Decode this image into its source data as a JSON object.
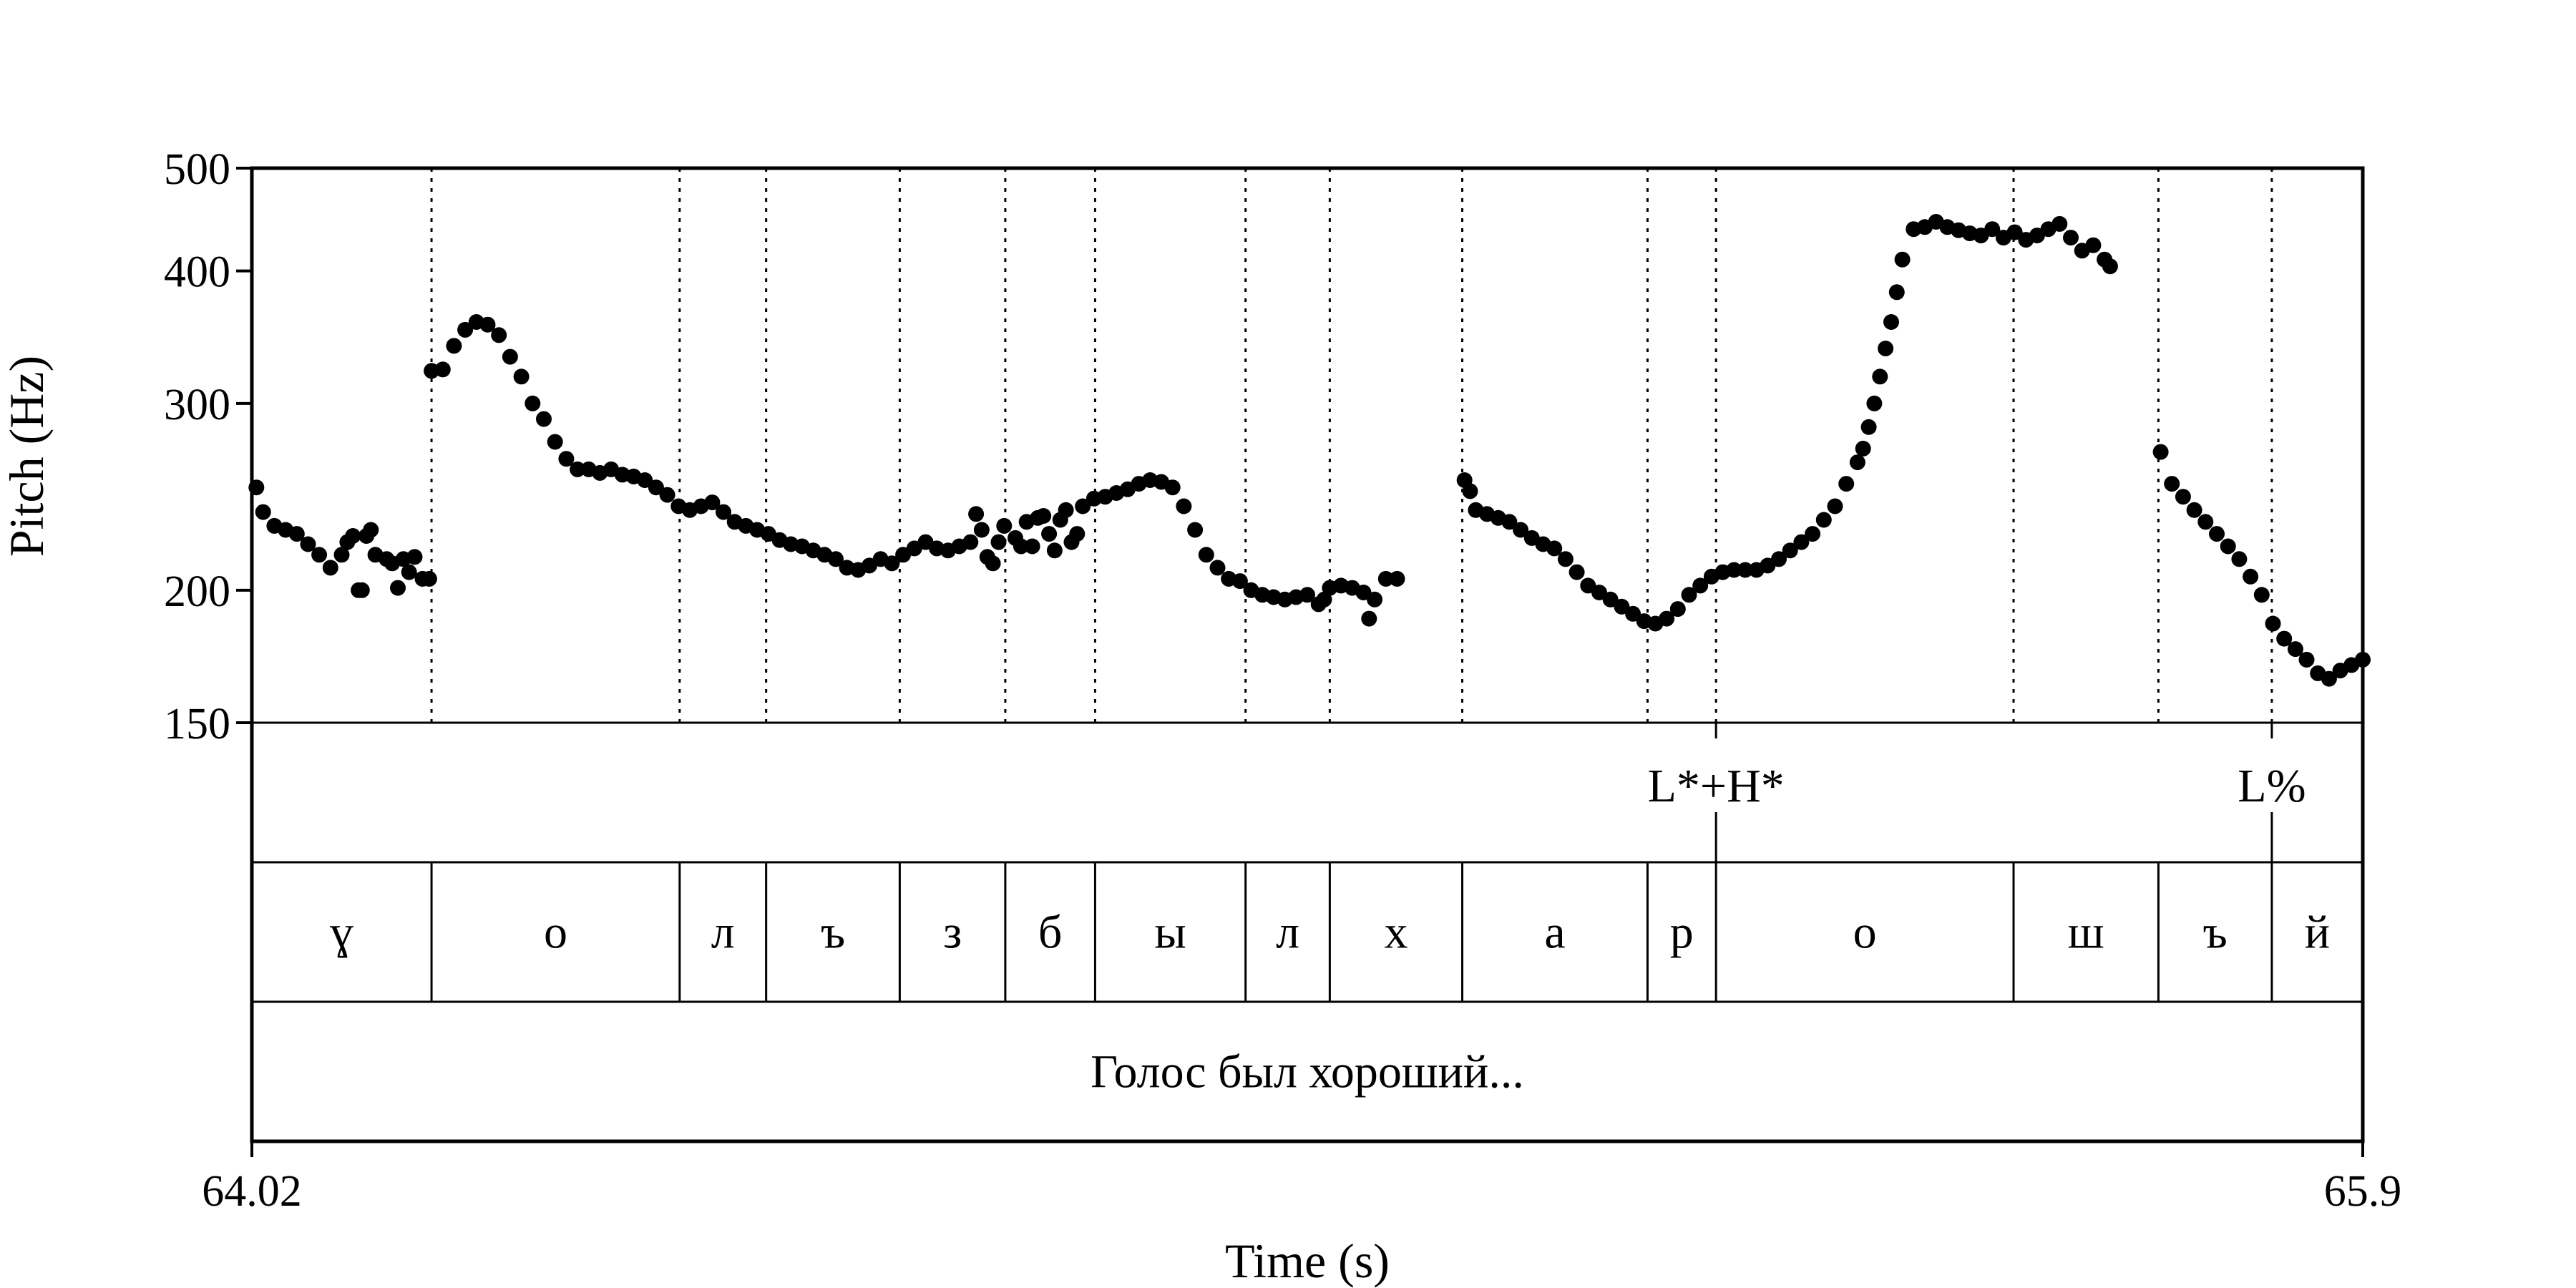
{
  "chart_data": {
    "type": "scatter",
    "title": "",
    "xlabel": "Time (s)",
    "ylabel": "Pitch (Hz)",
    "x_range": [
      64.02,
      65.9
    ],
    "y_range": [
      150,
      500
    ],
    "y_scale": "log",
    "x_tick_labels": [
      "64.02",
      "65.9"
    ],
    "y_tick_labels": [
      "150",
      "200",
      "300",
      "400",
      "500"
    ],
    "y_ticks": [
      150,
      200,
      300,
      400,
      500
    ],
    "grid": false,
    "segment_boundaries": [
      64.18,
      64.401,
      64.478,
      64.597,
      64.691,
      64.771,
      64.905,
      64.98,
      65.098,
      65.263,
      65.324,
      65.589,
      65.718,
      65.819
    ],
    "phoneme_tier": [
      {
        "label": "ɣ",
        "start": 64.02,
        "end": 64.18
      },
      {
        "label": "о",
        "start": 64.18,
        "end": 64.401
      },
      {
        "label": "л",
        "start": 64.401,
        "end": 64.478
      },
      {
        "label": "ъ",
        "start": 64.478,
        "end": 64.597
      },
      {
        "label": "з",
        "start": 64.597,
        "end": 64.691
      },
      {
        "label": "б",
        "start": 64.691,
        "end": 64.771
      },
      {
        "label": "ы",
        "start": 64.771,
        "end": 64.905
      },
      {
        "label": "л",
        "start": 64.905,
        "end": 64.98
      },
      {
        "label": "х",
        "start": 64.98,
        "end": 65.098
      },
      {
        "label": "а",
        "start": 65.098,
        "end": 65.263
      },
      {
        "label": "р",
        "start": 65.263,
        "end": 65.324
      },
      {
        "label": "о",
        "start": 65.324,
        "end": 65.589
      },
      {
        "label": "ш",
        "start": 65.589,
        "end": 65.718
      },
      {
        "label": "ъ",
        "start": 65.718,
        "end": 65.819
      },
      {
        "label": "й",
        "start": 65.819,
        "end": 65.9
      }
    ],
    "tone_tier": [
      {
        "label": "L*+H*",
        "time": 65.324
      },
      {
        "label": "L%",
        "time": 65.819
      }
    ],
    "sentence_tier": {
      "label": "Голос был хороший...",
      "start": 64.02,
      "end": 65.9
    },
    "series": [
      {
        "points": [
          [
            64.024,
            250
          ],
          [
            64.03,
            237
          ],
          [
            64.04,
            230
          ],
          [
            64.05,
            228
          ],
          [
            64.06,
            226
          ],
          [
            64.07,
            221
          ],
          [
            64.08,
            216
          ],
          [
            64.09,
            210
          ],
          [
            64.1,
            216
          ],
          [
            64.105,
            222
          ],
          [
            64.11,
            225
          ],
          [
            64.115,
            200
          ],
          [
            64.118,
            200
          ],
          [
            64.122,
            225
          ],
          [
            64.126,
            228
          ],
          [
            64.13,
            216
          ],
          [
            64.14,
            214
          ],
          [
            64.145,
            212
          ],
          [
            64.15,
            201
          ],
          [
            64.155,
            214
          ],
          [
            64.16,
            208
          ],
          [
            64.165,
            215
          ],
          [
            64.172,
            205
          ],
          [
            64.178,
            205
          ],
          [
            64.18,
            322
          ],
          [
            64.19,
            323
          ],
          [
            64.2,
            340
          ],
          [
            64.21,
            352
          ],
          [
            64.22,
            358
          ],
          [
            64.23,
            356
          ],
          [
            64.24,
            348
          ],
          [
            64.25,
            332
          ],
          [
            64.26,
            318
          ],
          [
            64.27,
            300
          ],
          [
            64.28,
            290
          ],
          [
            64.29,
            276
          ],
          [
            64.3,
            266
          ],
          [
            64.31,
            260
          ],
          [
            64.32,
            260
          ],
          [
            64.33,
            258
          ],
          [
            64.34,
            260
          ],
          [
            64.35,
            257
          ],
          [
            64.36,
            256
          ],
          [
            64.37,
            254
          ],
          [
            64.38,
            250
          ],
          [
            64.39,
            246
          ],
          [
            64.4,
            240
          ],
          [
            64.41,
            238
          ],
          [
            64.42,
            240
          ],
          [
            64.43,
            242
          ],
          [
            64.44,
            237
          ],
          [
            64.45,
            232
          ],
          [
            64.46,
            230
          ],
          [
            64.47,
            228
          ],
          [
            64.48,
            226
          ],
          [
            64.49,
            223
          ],
          [
            64.5,
            221
          ],
          [
            64.51,
            220
          ],
          [
            64.52,
            218
          ],
          [
            64.53,
            216
          ],
          [
            64.54,
            214
          ],
          [
            64.55,
            210
          ],
          [
            64.56,
            209
          ],
          [
            64.57,
            211
          ],
          [
            64.58,
            214
          ],
          [
            64.59,
            212
          ],
          [
            64.6,
            216
          ],
          [
            64.61,
            219
          ],
          [
            64.62,
            222
          ],
          [
            64.63,
            219
          ],
          [
            64.64,
            218
          ],
          [
            64.65,
            220
          ],
          [
            64.66,
            222
          ],
          [
            64.665,
            236
          ],
          [
            64.67,
            228
          ],
          [
            64.675,
            215
          ],
          [
            64.68,
            212
          ],
          [
            64.685,
            222
          ],
          [
            64.69,
            230
          ],
          [
            64.7,
            224
          ],
          [
            64.705,
            220
          ],
          [
            64.71,
            232
          ],
          [
            64.715,
            220
          ],
          [
            64.72,
            234
          ],
          [
            64.725,
            235
          ],
          [
            64.73,
            226
          ],
          [
            64.735,
            218
          ],
          [
            64.74,
            233
          ],
          [
            64.745,
            238
          ],
          [
            64.75,
            222
          ],
          [
            64.755,
            226
          ],
          [
            64.76,
            240
          ],
          [
            64.77,
            244
          ],
          [
            64.78,
            245
          ],
          [
            64.79,
            247
          ],
          [
            64.8,
            249
          ],
          [
            64.81,
            252
          ],
          [
            64.82,
            254
          ],
          [
            64.83,
            253
          ],
          [
            64.84,
            250
          ],
          [
            64.85,
            240
          ],
          [
            64.86,
            228
          ],
          [
            64.87,
            216
          ],
          [
            64.88,
            210
          ],
          [
            64.89,
            205
          ],
          [
            64.9,
            204
          ],
          [
            64.91,
            200
          ],
          [
            64.92,
            198
          ],
          [
            64.93,
            197
          ],
          [
            64.94,
            196
          ],
          [
            64.95,
            197
          ],
          [
            64.96,
            198
          ],
          [
            64.97,
            194
          ],
          [
            64.975,
            196
          ],
          [
            64.98,
            201
          ],
          [
            64.99,
            202
          ],
          [
            65.0,
            201
          ],
          [
            65.01,
            199
          ],
          [
            65.015,
            188
          ],
          [
            65.02,
            196
          ],
          [
            65.03,
            205
          ],
          [
            65.04,
            205
          ],
          [
            65.1,
            254
          ],
          [
            65.105,
            248
          ],
          [
            65.11,
            238
          ],
          [
            65.12,
            236
          ],
          [
            65.13,
            234
          ],
          [
            65.14,
            232
          ],
          [
            65.15,
            228
          ],
          [
            65.16,
            224
          ],
          [
            65.17,
            221
          ],
          [
            65.18,
            219
          ],
          [
            65.19,
            214
          ],
          [
            65.2,
            208
          ],
          [
            65.21,
            202
          ],
          [
            65.22,
            199
          ],
          [
            65.23,
            196
          ],
          [
            65.24,
            193
          ],
          [
            65.25,
            190
          ],
          [
            65.26,
            187
          ],
          [
            65.27,
            186
          ],
          [
            65.28,
            188
          ],
          [
            65.29,
            192
          ],
          [
            65.3,
            198
          ],
          [
            65.31,
            202
          ],
          [
            65.32,
            206
          ],
          [
            65.33,
            208
          ],
          [
            65.34,
            209
          ],
          [
            65.35,
            209
          ],
          [
            65.36,
            209
          ],
          [
            65.37,
            211
          ],
          [
            65.38,
            214
          ],
          [
            65.39,
            218
          ],
          [
            65.4,
            222
          ],
          [
            65.41,
            226
          ],
          [
            65.42,
            233
          ],
          [
            65.43,
            240
          ],
          [
            65.44,
            252
          ],
          [
            65.45,
            264
          ],
          [
            65.455,
            272
          ],
          [
            65.46,
            285
          ],
          [
            65.465,
            300
          ],
          [
            65.47,
            318
          ],
          [
            65.475,
            338
          ],
          [
            65.48,
            358
          ],
          [
            65.485,
            382
          ],
          [
            65.49,
            410
          ],
          [
            65.5,
            438
          ],
          [
            65.51,
            440
          ],
          [
            65.52,
            445
          ],
          [
            65.53,
            440
          ],
          [
            65.54,
            437
          ],
          [
            65.55,
            434
          ],
          [
            65.56,
            432
          ],
          [
            65.57,
            438
          ],
          [
            65.58,
            430
          ],
          [
            65.59,
            435
          ],
          [
            65.6,
            428
          ],
          [
            65.61,
            432
          ],
          [
            65.62,
            438
          ],
          [
            65.63,
            443
          ],
          [
            65.64,
            430
          ],
          [
            65.65,
            418
          ],
          [
            65.66,
            423
          ],
          [
            65.67,
            410
          ],
          [
            65.675,
            404
          ],
          [
            65.72,
            270
          ],
          [
            65.73,
            252
          ],
          [
            65.74,
            245
          ],
          [
            65.75,
            238
          ],
          [
            65.76,
            232
          ],
          [
            65.77,
            226
          ],
          [
            65.78,
            220
          ],
          [
            65.79,
            214
          ],
          [
            65.8,
            206
          ],
          [
            65.81,
            198
          ],
          [
            65.82,
            186
          ],
          [
            65.83,
            180
          ],
          [
            65.84,
            176
          ],
          [
            65.85,
            172
          ],
          [
            65.86,
            167
          ],
          [
            65.87,
            165
          ],
          [
            65.88,
            168
          ],
          [
            65.89,
            170
          ],
          [
            65.9,
            172
          ]
        ]
      }
    ]
  }
}
